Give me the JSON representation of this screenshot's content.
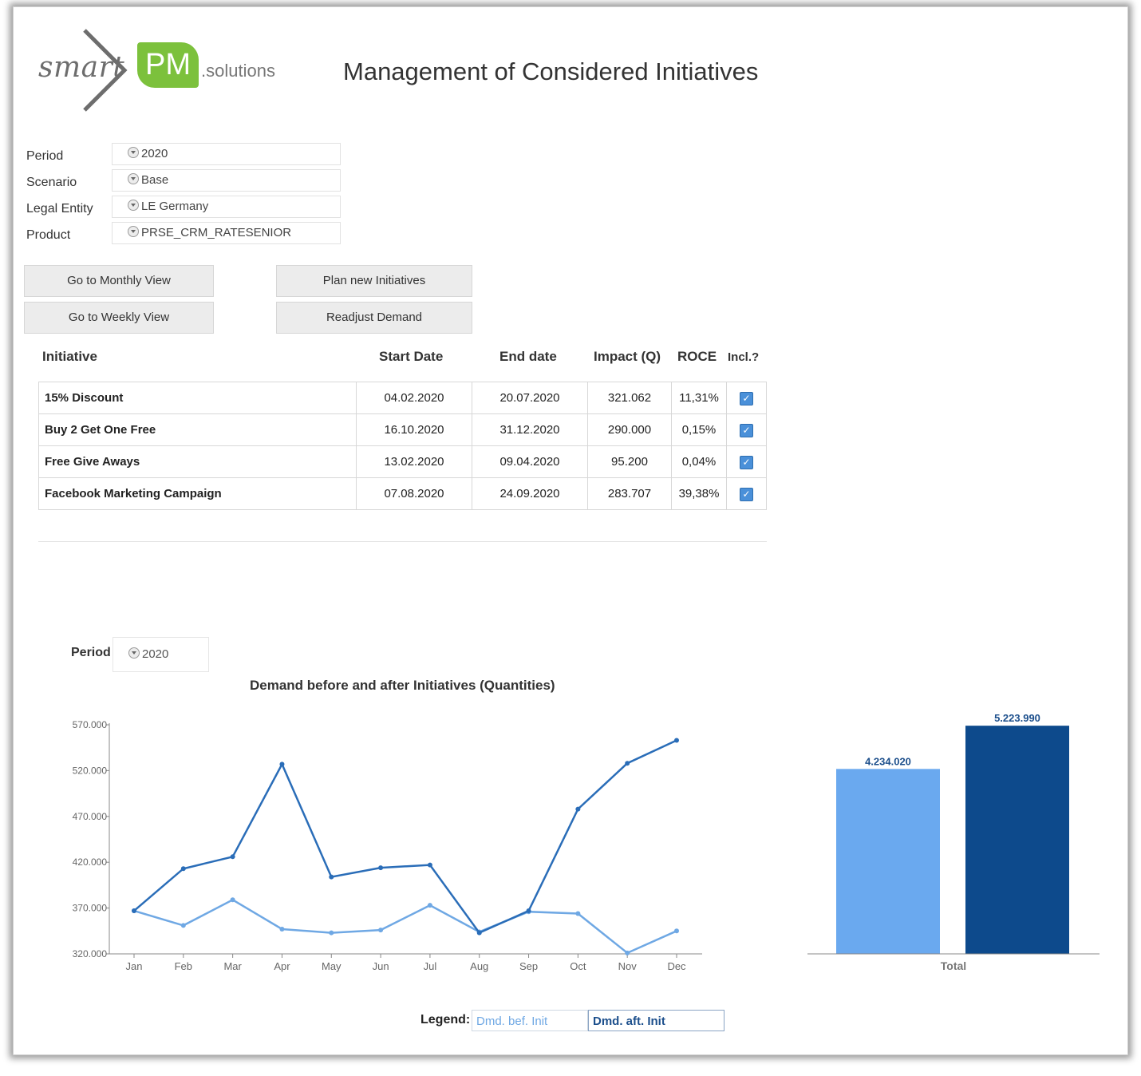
{
  "header": {
    "logo_smart": "smart",
    "logo_pm": "PM",
    "logo_solutions": ".solutions",
    "title": "Management of Considered Initiatives"
  },
  "filters": [
    {
      "label": "Period",
      "value": "2020"
    },
    {
      "label": "Scenario",
      "value": "Base"
    },
    {
      "label": "Legal Entity",
      "value": "LE Germany"
    },
    {
      "label": "Product",
      "value": "PRSE_CRM_RATESENIOR"
    }
  ],
  "buttons": {
    "monthly": "Go to Monthly View",
    "weekly": "Go to Weekly View",
    "plan": "Plan new Initiatives",
    "readjust": "Readjust Demand"
  },
  "table": {
    "headers": [
      "Initiative",
      "Start Date",
      "End date",
      "Impact (Q)",
      "ROCE",
      "Incl.?"
    ],
    "rows": [
      {
        "initiative": "15% Discount",
        "start": "04.02.2020",
        "end": "20.07.2020",
        "impact": "321.062",
        "roce": "11,31%",
        "included": true
      },
      {
        "initiative": "Buy 2 Get One Free",
        "start": "16.10.2020",
        "end": "31.12.2020",
        "impact": "290.000",
        "roce": "0,15%",
        "included": true
      },
      {
        "initiative": "Free Give Aways",
        "start": "13.02.2020",
        "end": "09.04.2020",
        "impact": "95.200",
        "roce": "0,04%",
        "included": true
      },
      {
        "initiative": "Facebook Marketing Campaign",
        "start": "07.08.2020",
        "end": "24.09.2020",
        "impact": "283.707",
        "roce": "39,38%",
        "included": true
      }
    ]
  },
  "lower": {
    "period_label": "Period",
    "period_value": "2020",
    "legend_label": "Legend:",
    "legend_before": "Dmd. bef. Init",
    "legend_after": "Dmd. aft. Init"
  },
  "colors": {
    "before": "#6fa8e4",
    "after": "#2a6db8",
    "bar_before": "#6aa9ef",
    "bar_after": "#0d4a8c"
  },
  "chart_data": [
    {
      "type": "line",
      "title": "Demand before and after Initiatives (Quantities)",
      "categories": [
        "Jan",
        "Feb",
        "Mar",
        "Apr",
        "May",
        "Jun",
        "Jul",
        "Aug",
        "Sep",
        "Oct",
        "Nov",
        "Dec"
      ],
      "y_ticks": [
        "320.000",
        "370.000",
        "420.000",
        "470.000",
        "520.000",
        "570.000"
      ],
      "ylim": [
        320000,
        570000
      ],
      "series": [
        {
          "name": "Dmd. bef. Init",
          "values": [
            367000,
            351000,
            379000,
            347000,
            343000,
            346000,
            373000,
            344000,
            366000,
            364000,
            321000,
            345000
          ]
        },
        {
          "name": "Dmd. aft. Init",
          "values": [
            367000,
            413000,
            426000,
            527000,
            404000,
            414000,
            417000,
            343000,
            367000,
            478000,
            528000,
            553000
          ]
        }
      ]
    },
    {
      "type": "bar",
      "categories": [
        "Total"
      ],
      "series": [
        {
          "name": "Dmd. bef. Init",
          "values": [
            4234020
          ],
          "label": "4.234.020"
        },
        {
          "name": "Dmd. aft. Init",
          "values": [
            5223990
          ],
          "label": "5.223.990"
        }
      ]
    }
  ]
}
